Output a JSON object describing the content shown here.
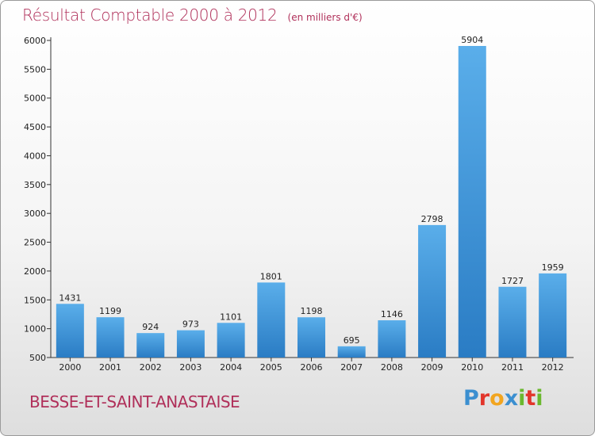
{
  "chart_data": {
    "type": "bar",
    "title": "Résultat Comptable 2000 à 2012",
    "subtitle": "(en milliers d'€)",
    "categories": [
      "2000",
      "2001",
      "2002",
      "2003",
      "2004",
      "2005",
      "2006",
      "2007",
      "2008",
      "2009",
      "2010",
      "2011",
      "2012"
    ],
    "values": [
      1431,
      1199,
      924,
      973,
      1101,
      1801,
      1198,
      695,
      1146,
      2798,
      5904,
      1727,
      1959
    ],
    "ylim": [
      500,
      6000
    ],
    "yticks": [
      500,
      1000,
      1500,
      2000,
      2500,
      3000,
      3500,
      4000,
      4500,
      5000,
      5500,
      6000
    ],
    "grid": false,
    "bar_color": "#3a94d8"
  },
  "footer": {
    "commune": "BESSE-ET-SAINT-ANASTAISE",
    "logo_letters": [
      "P",
      "r",
      "o",
      "x",
      "i",
      "t",
      "i"
    ],
    "logo_colors": [
      "#3b8fd0",
      "#e2352b",
      "#f2a51f",
      "#3b8fd0",
      "#6ab82e",
      "#e2352b",
      "#6ab82e"
    ]
  },
  "colors": {
    "title": "#b0305a"
  }
}
